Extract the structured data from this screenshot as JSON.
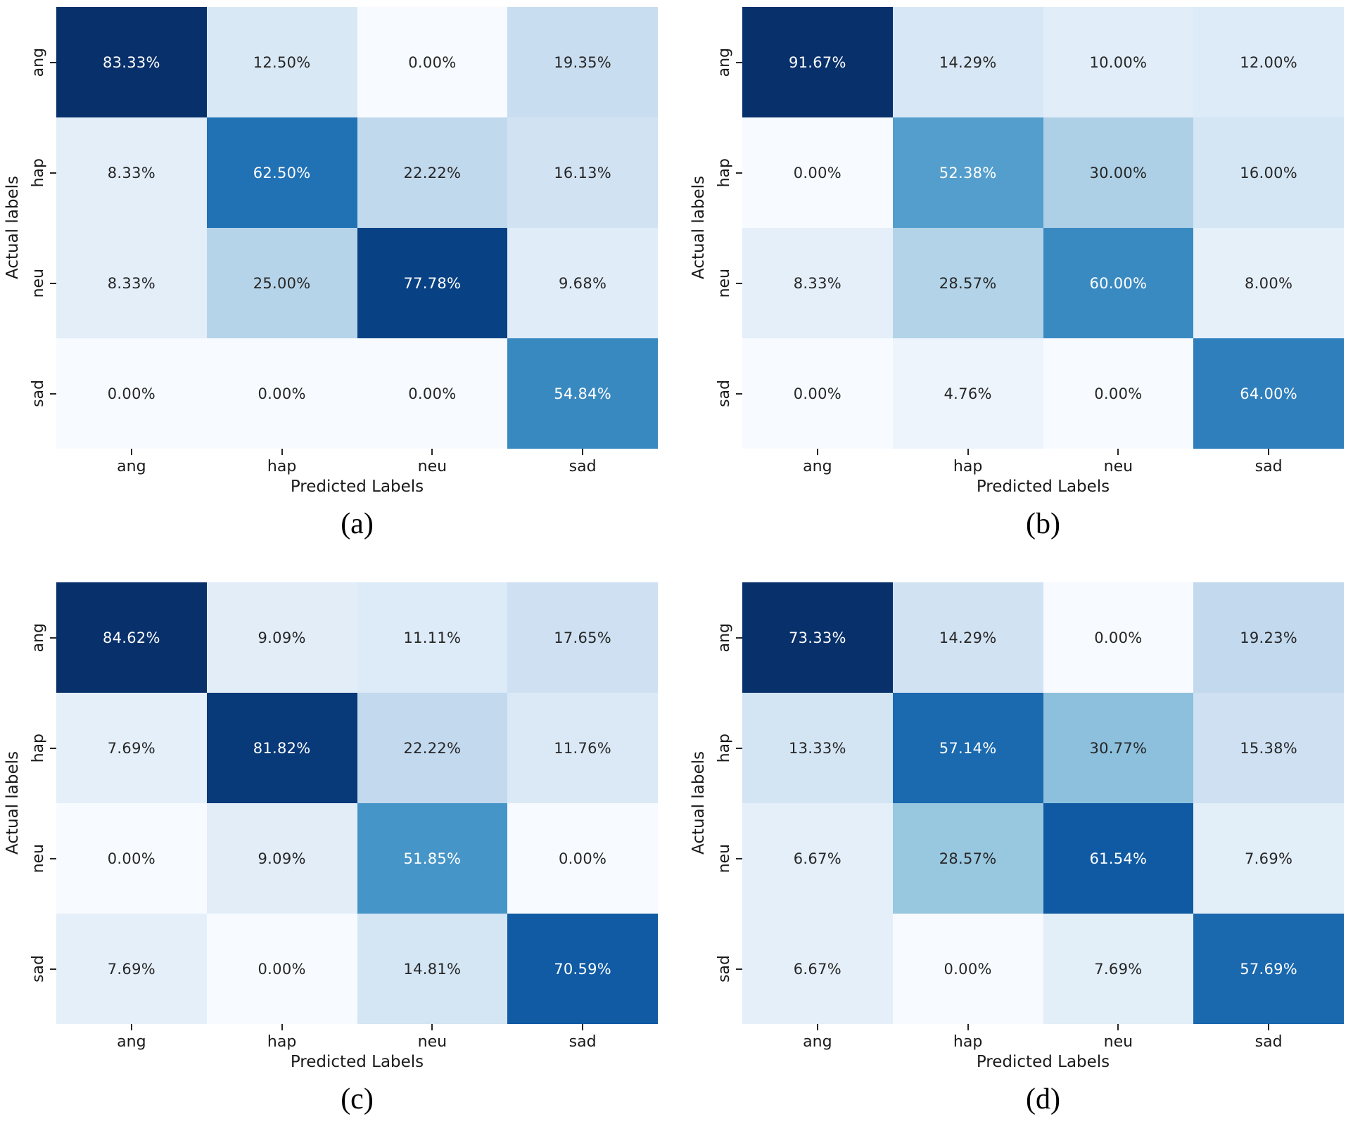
{
  "figure": {
    "ylabel": "Actual labels",
    "xlabel": "Predicted Labels",
    "tick_labels": [
      "ang",
      "hap",
      "neu",
      "sad"
    ],
    "colormap": "Blues",
    "annot_dark_color": "#262626",
    "annot_light_color": "#ffffff",
    "value_unit": "%"
  },
  "chart_data": [
    {
      "type": "heatmap",
      "caption": "(a)",
      "x": [
        "ang",
        "hap",
        "neu",
        "sad"
      ],
      "y": [
        "ang",
        "hap",
        "neu",
        "sad"
      ],
      "xlabel": "Predicted Labels",
      "ylabel": "Actual labels",
      "vmin": 0,
      "values": [
        [
          83.33,
          12.5,
          0.0,
          19.35
        ],
        [
          8.33,
          62.5,
          22.22,
          16.13
        ],
        [
          8.33,
          25.0,
          77.78,
          9.68
        ],
        [
          0.0,
          0.0,
          0.0,
          54.84
        ]
      ]
    },
    {
      "type": "heatmap",
      "caption": "(b)",
      "x": [
        "ang",
        "hap",
        "neu",
        "sad"
      ],
      "y": [
        "ang",
        "hap",
        "neu",
        "sad"
      ],
      "xlabel": "Predicted Labels",
      "ylabel": "Actual labels",
      "vmin": 0,
      "values": [
        [
          91.67,
          14.29,
          10.0,
          12.0
        ],
        [
          0.0,
          52.38,
          30.0,
          16.0
        ],
        [
          8.33,
          28.57,
          60.0,
          8.0
        ],
        [
          0.0,
          4.76,
          0.0,
          64.0
        ]
      ]
    },
    {
      "type": "heatmap",
      "caption": "(c)",
      "x": [
        "ang",
        "hap",
        "neu",
        "sad"
      ],
      "y": [
        "ang",
        "hap",
        "neu",
        "sad"
      ],
      "xlabel": "Predicted Labels",
      "ylabel": "Actual labels",
      "vmin": 0,
      "values": [
        [
          84.62,
          9.09,
          11.11,
          17.65
        ],
        [
          7.69,
          81.82,
          22.22,
          11.76
        ],
        [
          0.0,
          9.09,
          51.85,
          0.0
        ],
        [
          7.69,
          0.0,
          14.81,
          70.59
        ]
      ]
    },
    {
      "type": "heatmap",
      "caption": "(d)",
      "x": [
        "ang",
        "hap",
        "neu",
        "sad"
      ],
      "y": [
        "ang",
        "hap",
        "neu",
        "sad"
      ],
      "xlabel": "Predicted Labels",
      "ylabel": "Actual labels",
      "vmin": 0,
      "values": [
        [
          73.33,
          14.29,
          0.0,
          19.23
        ],
        [
          13.33,
          57.14,
          30.77,
          15.38
        ],
        [
          6.67,
          28.57,
          61.54,
          7.69
        ],
        [
          6.67,
          0.0,
          7.69,
          57.69
        ]
      ]
    }
  ]
}
